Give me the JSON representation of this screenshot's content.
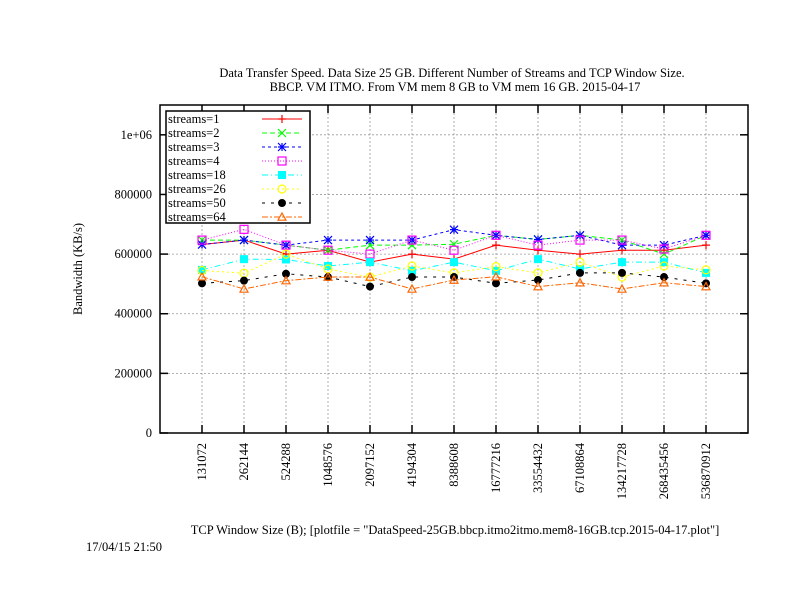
{
  "chart_data": {
    "type": "line",
    "title": [
      "Data Transfer Speed. Data Size 25 GB. Different Number of Streams and TCP Window Size.",
      "BBCP. VM ITMO. From VM mem 8 GB to VM mem 16 GB.  2015-04-17"
    ],
    "xlabel": "TCP Window Size (B); [plotfile = \"DataSpeed-25GB.bbcp.itmo2itmo.mem8-16GB.tcp.2015-04-17.plot\"]",
    "ylabel": "Bandwidth (KB/s)",
    "timestamp": "17/04/15 21:50",
    "categories": [
      "131072",
      "262144",
      "524288",
      "1048576",
      "2097152",
      "4194304",
      "8388608",
      "16777216",
      "33554432",
      "67108864",
      "134217728",
      "268435456",
      "536870912"
    ],
    "ylim": [
      0,
      1100000
    ],
    "yticks": [
      0,
      200000,
      400000,
      600000,
      800000,
      1000000
    ],
    "ytick_labels": [
      "0",
      "200000",
      "400000",
      "600000",
      "800000",
      "1e+06"
    ],
    "grid": true,
    "legend_position": "top-left",
    "series": [
      {
        "name": "streams=1",
        "color": "#ff0000",
        "marker": "plus",
        "dash": "",
        "values": [
          632000,
          647000,
          600000,
          613000,
          573000,
          600000,
          583000,
          630000,
          613000,
          600000,
          613000,
          613000,
          630000
        ]
      },
      {
        "name": "streams=2",
        "color": "#00ff00",
        "marker": "x",
        "dash": "5,3",
        "values": [
          647000,
          647000,
          630000,
          613000,
          630000,
          630000,
          633000,
          663000,
          649000,
          663000,
          647000,
          600000,
          663000
        ]
      },
      {
        "name": "streams=3",
        "color": "#0000ff",
        "marker": "star",
        "dash": "3,3",
        "values": [
          632000,
          647000,
          630000,
          647000,
          647000,
          647000,
          682000,
          663000,
          649000,
          663000,
          630000,
          630000,
          663000
        ]
      },
      {
        "name": "streams=4",
        "color": "#ff00ff",
        "marker": "box",
        "dash": "1,2",
        "values": [
          647000,
          683000,
          630000,
          613000,
          600000,
          647000,
          613000,
          663000,
          630000,
          647000,
          647000,
          617000,
          663000
        ]
      },
      {
        "name": "streams=18",
        "color": "#00ffff",
        "marker": "fbox",
        "dash": "6,3,1,3",
        "values": [
          547000,
          583000,
          582000,
          560000,
          573000,
          544000,
          573000,
          544000,
          583000,
          550000,
          573000,
          573000,
          537000
        ]
      },
      {
        "name": "streams=26",
        "color": "#ffff00",
        "marker": "circle",
        "dash": "2,3",
        "values": [
          545000,
          536000,
          600000,
          550000,
          523000,
          560000,
          537000,
          558000,
          537000,
          573000,
          523000,
          560000,
          547000
        ]
      },
      {
        "name": "streams=50",
        "color": "#000000",
        "marker": "fcircle",
        "dash": "3,6",
        "values": [
          502000,
          511000,
          534000,
          523000,
          491000,
          523000,
          523000,
          502000,
          513000,
          537000,
          537000,
          523000,
          502000
        ]
      },
      {
        "name": "streams=64",
        "color": "#ff6600",
        "marker": "triangle",
        "dash": "6,2,2,2",
        "values": [
          524000,
          483000,
          511000,
          523000,
          523000,
          483000,
          513000,
          524000,
          491000,
          504000,
          483000,
          504000,
          491000
        ]
      }
    ]
  }
}
